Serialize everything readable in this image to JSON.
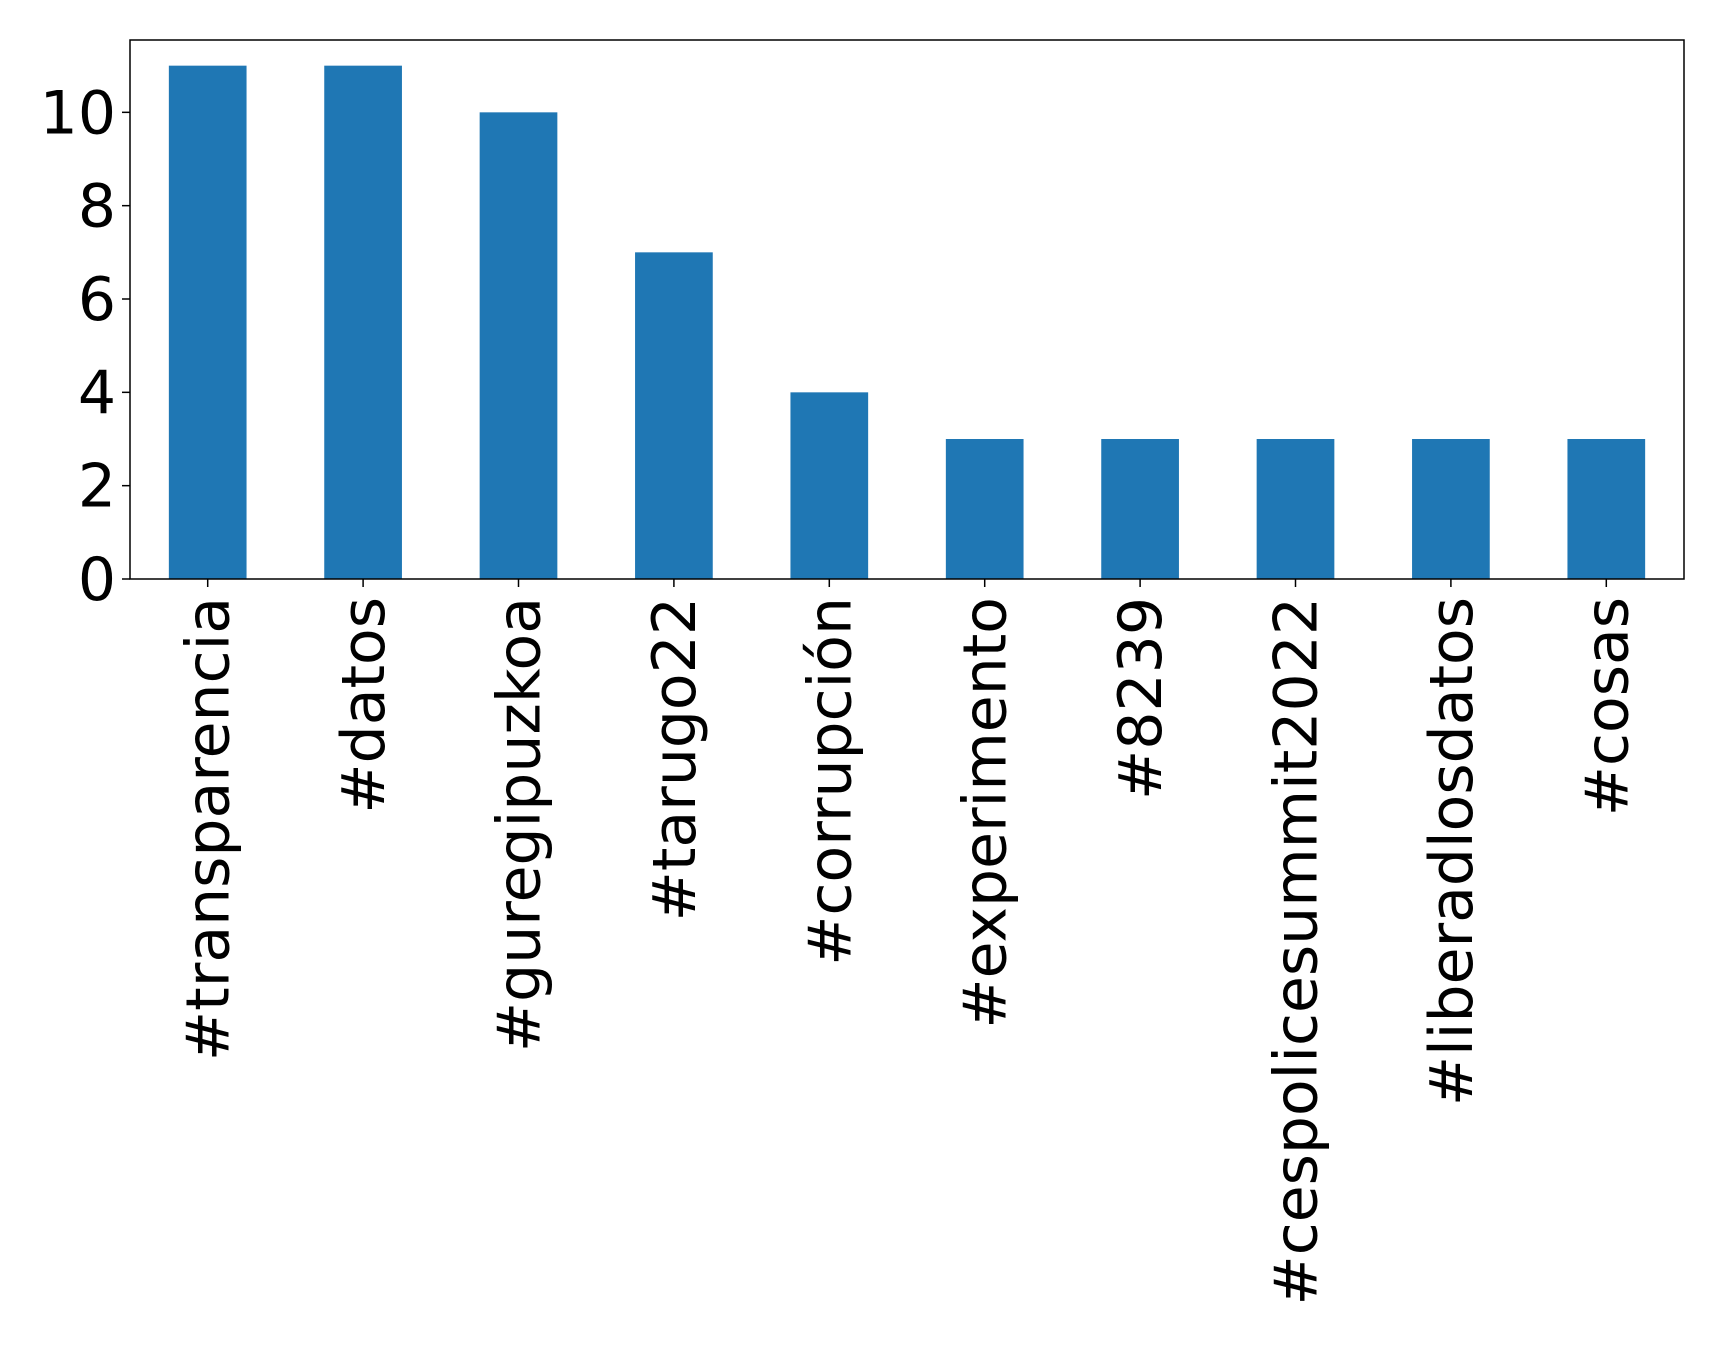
{
  "chart_data": {
    "type": "bar",
    "categories": [
      "#transparencia",
      "#datos",
      "#guregipuzkoa",
      "#tarugo22",
      "#corrupción",
      "#experimento",
      "#8239",
      "#cespolicesummit2022",
      "#liberadlosdatos",
      "#cosas"
    ],
    "values": [
      11,
      11,
      10,
      7,
      4,
      3,
      3,
      3,
      3,
      3
    ],
    "yticks": [
      0,
      2,
      4,
      6,
      8,
      10
    ],
    "ylim": [
      0,
      11.55
    ],
    "title": "",
    "xlabel": "",
    "ylabel": "",
    "grid": false,
    "bar_color": "#1f77b4"
  }
}
